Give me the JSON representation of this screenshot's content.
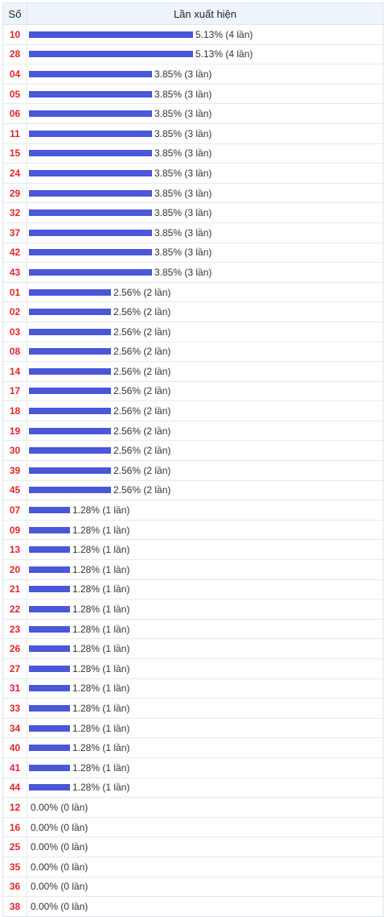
{
  "chart_data": {
    "type": "bar",
    "header": {
      "col_number": "Số",
      "col_frequency": "Lần xuất hiện"
    },
    "rows": [
      {
        "num": "10",
        "label": "5.13% (4 lần)",
        "value": 5.13
      },
      {
        "num": "28",
        "label": "5.13% (4 lần)",
        "value": 5.13
      },
      {
        "num": "04",
        "label": "3.85% (3 lần)",
        "value": 3.85
      },
      {
        "num": "05",
        "label": "3.85% (3 lần)",
        "value": 3.85
      },
      {
        "num": "06",
        "label": "3.85% (3 lần)",
        "value": 3.85
      },
      {
        "num": "11",
        "label": "3.85% (3 lần)",
        "value": 3.85
      },
      {
        "num": "15",
        "label": "3.85% (3 lần)",
        "value": 3.85
      },
      {
        "num": "24",
        "label": "3.85% (3 lần)",
        "value": 3.85
      },
      {
        "num": "29",
        "label": "3.85% (3 lần)",
        "value": 3.85
      },
      {
        "num": "32",
        "label": "3.85% (3 lần)",
        "value": 3.85
      },
      {
        "num": "37",
        "label": "3.85% (3 lần)",
        "value": 3.85
      },
      {
        "num": "42",
        "label": "3.85% (3 lần)",
        "value": 3.85
      },
      {
        "num": "43",
        "label": "3.85% (3 lần)",
        "value": 3.85
      },
      {
        "num": "01",
        "label": "2.56% (2 lần)",
        "value": 2.56
      },
      {
        "num": "02",
        "label": "2.56% (2 lần)",
        "value": 2.56
      },
      {
        "num": "03",
        "label": "2.56% (2 lần)",
        "value": 2.56
      },
      {
        "num": "08",
        "label": "2.56% (2 lần)",
        "value": 2.56
      },
      {
        "num": "14",
        "label": "2.56% (2 lần)",
        "value": 2.56
      },
      {
        "num": "17",
        "label": "2.56% (2 lần)",
        "value": 2.56
      },
      {
        "num": "18",
        "label": "2.56% (2 lần)",
        "value": 2.56
      },
      {
        "num": "19",
        "label": "2.56% (2 lần)",
        "value": 2.56
      },
      {
        "num": "30",
        "label": "2.56% (2 lần)",
        "value": 2.56
      },
      {
        "num": "39",
        "label": "2.56% (2 lần)",
        "value": 2.56
      },
      {
        "num": "45",
        "label": "2.56% (2 lần)",
        "value": 2.56
      },
      {
        "num": "07",
        "label": "1.28% (1 lần)",
        "value": 1.28
      },
      {
        "num": "09",
        "label": "1.28% (1 lần)",
        "value": 1.28
      },
      {
        "num": "13",
        "label": "1.28% (1 lần)",
        "value": 1.28
      },
      {
        "num": "20",
        "label": "1.28% (1 lần)",
        "value": 1.28
      },
      {
        "num": "21",
        "label": "1.28% (1 lần)",
        "value": 1.28
      },
      {
        "num": "22",
        "label": "1.28% (1 lần)",
        "value": 1.28
      },
      {
        "num": "23",
        "label": "1.28% (1 lần)",
        "value": 1.28
      },
      {
        "num": "26",
        "label": "1.28% (1 lần)",
        "value": 1.28
      },
      {
        "num": "27",
        "label": "1.28% (1 lần)",
        "value": 1.28
      },
      {
        "num": "31",
        "label": "1.28% (1 lần)",
        "value": 1.28
      },
      {
        "num": "33",
        "label": "1.28% (1 lần)",
        "value": 1.28
      },
      {
        "num": "34",
        "label": "1.28% (1 lần)",
        "value": 1.28
      },
      {
        "num": "40",
        "label": "1.28% (1 lần)",
        "value": 1.28
      },
      {
        "num": "41",
        "label": "1.28% (1 lần)",
        "value": 1.28
      },
      {
        "num": "44",
        "label": "1.28% (1 lần)",
        "value": 1.28
      },
      {
        "num": "12",
        "label": "0.00% (0 lần)",
        "value": 0
      },
      {
        "num": "16",
        "label": "0.00% (0 lần)",
        "value": 0
      },
      {
        "num": "25",
        "label": "0.00% (0 lần)",
        "value": 0
      },
      {
        "num": "35",
        "label": "0.00% (0 lần)",
        "value": 0
      },
      {
        "num": "36",
        "label": "0.00% (0 lần)",
        "value": 0
      },
      {
        "num": "38",
        "label": "0.00% (0 lần)",
        "value": 0
      }
    ],
    "colors": {
      "bar": "#4a57d8",
      "number": "#e0262f",
      "header_bg": "#eef4fb"
    }
  }
}
